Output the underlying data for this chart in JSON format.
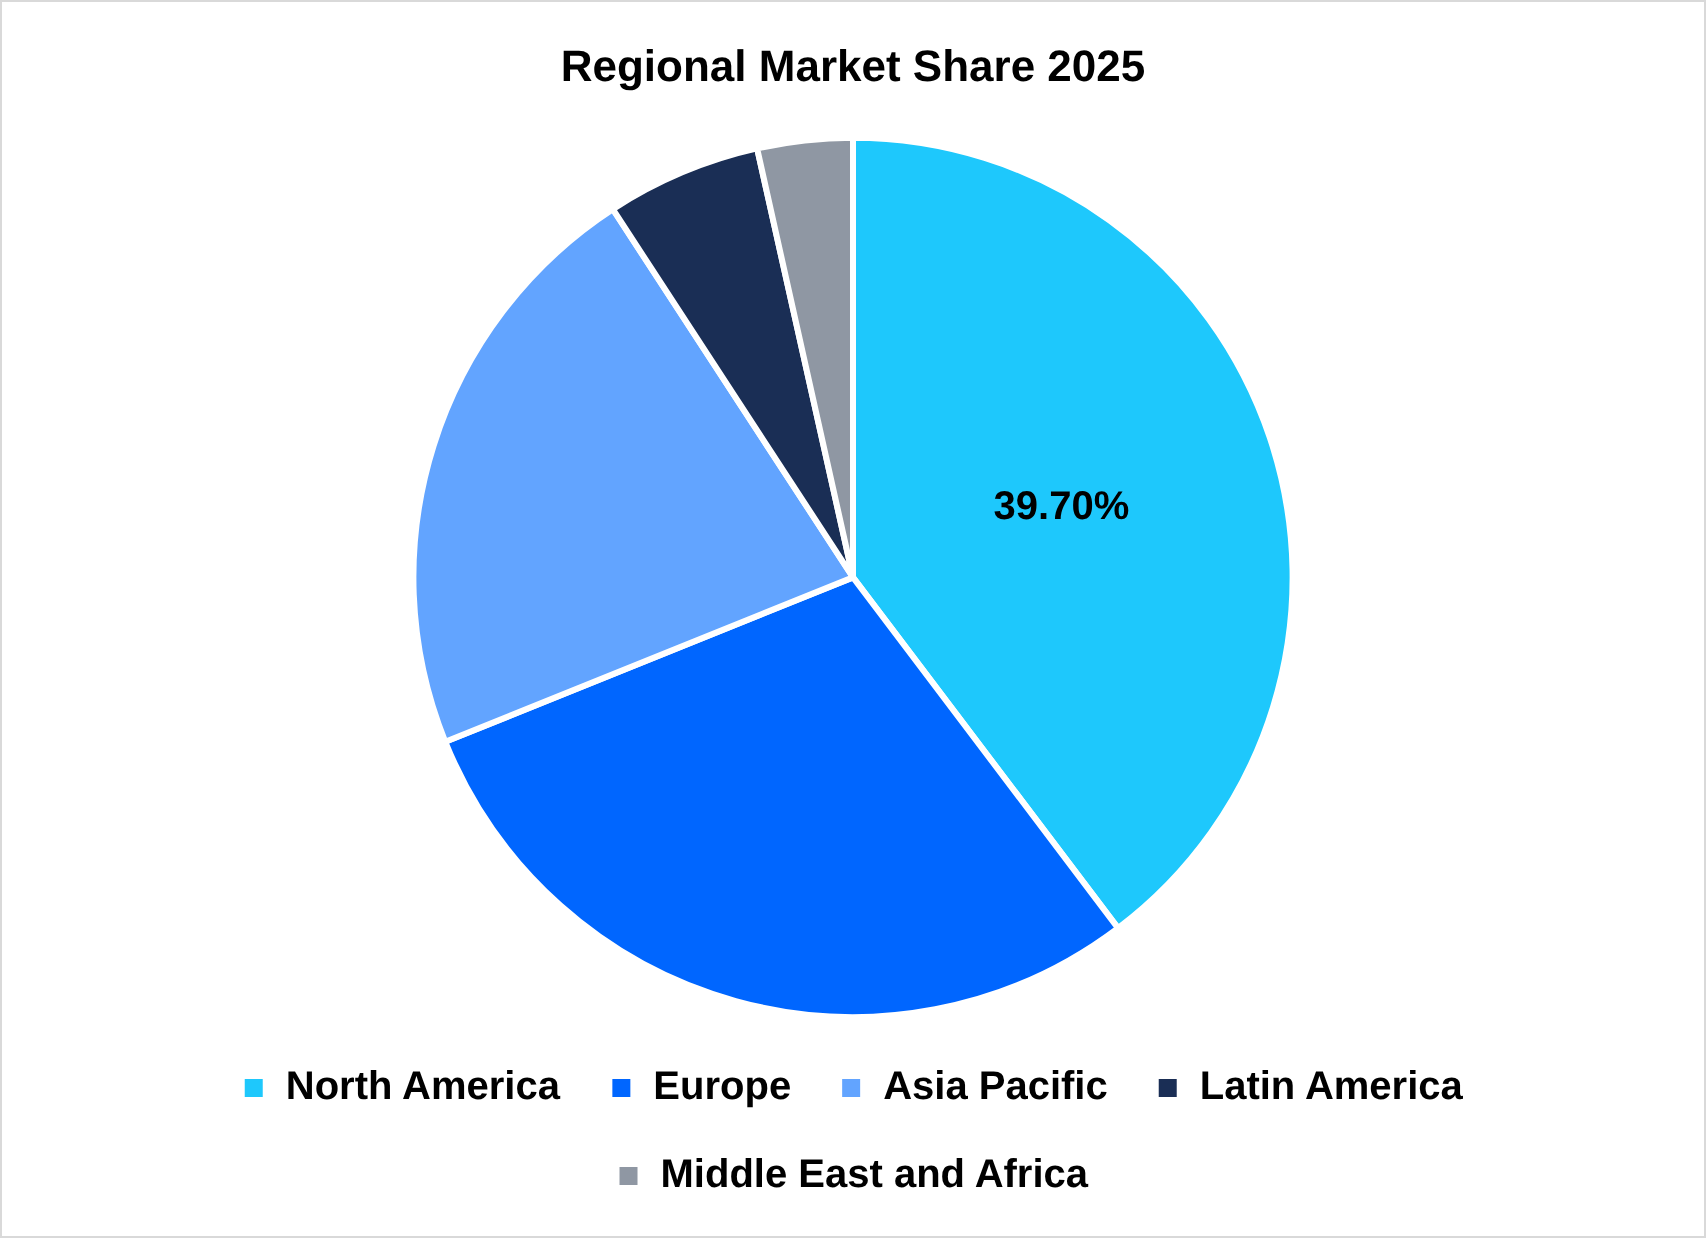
{
  "chart_data": {
    "type": "pie",
    "title": "Regional Market Share 2025",
    "categories": [
      "North America",
      "Europe",
      "Asia Pacific",
      "Latin America",
      "Middle East and Africa"
    ],
    "values": [
      39.7,
      29.2,
      21.9,
      5.7,
      3.5
    ],
    "colors": [
      "#1ec8fc",
      "#0066ff",
      "#62a4ff",
      "#1a2e55",
      "#8f97a3"
    ],
    "value_labels": [
      "39.70%",
      null,
      null,
      null,
      null
    ],
    "legend": "bottom"
  }
}
